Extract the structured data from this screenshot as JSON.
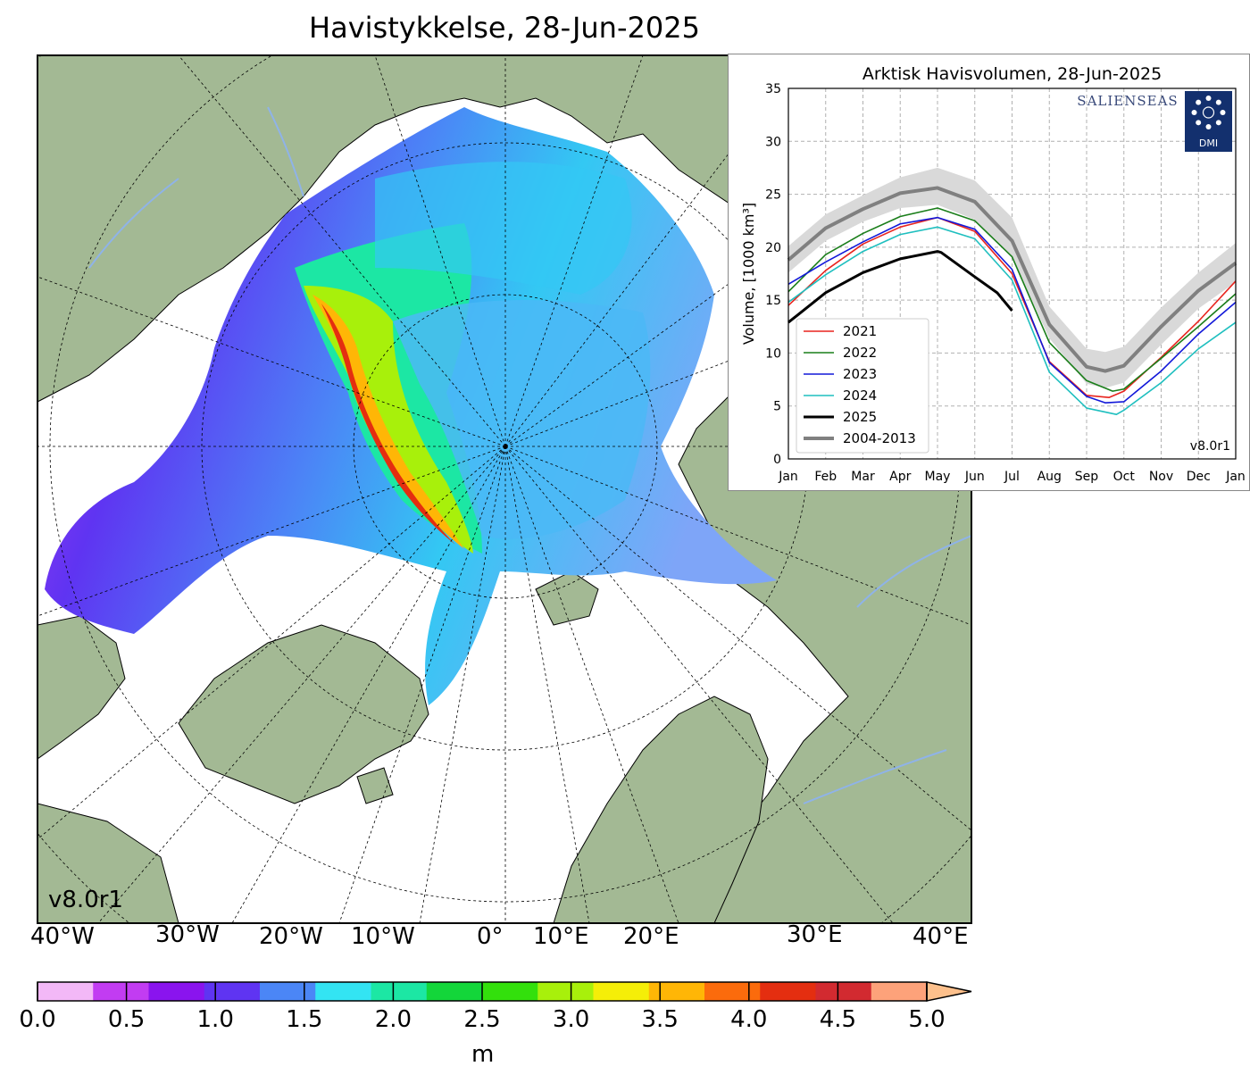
{
  "title": "Havistykkelse, 28-Jun-2025",
  "map": {
    "version": "v8.0r1",
    "lon_labels": [
      "40°W",
      "30°W",
      "20°W",
      "10°W",
      "0°",
      "10°E",
      "20°E",
      "30°E",
      "40°E"
    ],
    "colors": {
      "land": "#a3b994",
      "ocean": "#ffffff",
      "river": "#8fb3e8",
      "coast": "#000000"
    }
  },
  "colorbar": {
    "ticks": [
      "0.0",
      "0.5",
      "1.0",
      "1.5",
      "2.0",
      "2.5",
      "3.0",
      "3.5",
      "4.0",
      "4.5",
      "5.0"
    ],
    "unit": "m",
    "colors": [
      "#f3b8f7",
      "#c23cf2",
      "#8a14ee",
      "#5f34f2",
      "#4b86f6",
      "#33e4f3",
      "#1ce7a4",
      "#13d63a",
      "#33e00c",
      "#a8f00b",
      "#f5ee08",
      "#ffb606",
      "#fb6b0c",
      "#e42e10",
      "#d22a30",
      "#fda27a",
      "#fdc08c"
    ]
  },
  "chart_data": {
    "type": "line",
    "title": "Arktisk Havisvolumen, 28-Jun-2025",
    "ylabel": "Volume, [1000 km³]",
    "xlabel": "",
    "ylim": [
      0,
      35
    ],
    "yticks": [
      0,
      5,
      10,
      15,
      20,
      25,
      30,
      35
    ],
    "x_ticks": [
      "Jan",
      "Feb",
      "Mar",
      "Apr",
      "May",
      "Jun",
      "Jul",
      "Aug",
      "Sep",
      "Oct",
      "Nov",
      "Dec",
      "Jan"
    ],
    "grid": true,
    "legend_position": "lower-left",
    "version": "v8.0r1",
    "logos": [
      "SALIENSEAS",
      "DMI"
    ],
    "series": [
      {
        "name": "2021",
        "color": "#e8241e",
        "x": [
          0,
          1,
          2,
          3,
          4,
          5,
          6,
          7,
          8,
          8.6,
          9,
          10,
          11,
          12
        ],
        "values": [
          14.5,
          17.8,
          20.3,
          21.9,
          22.8,
          21.5,
          17.5,
          9.2,
          6.0,
          5.8,
          6.4,
          9.6,
          13.0,
          16.8
        ]
      },
      {
        "name": "2022",
        "color": "#1a7e1a",
        "x": [
          0,
          1,
          2,
          3,
          4,
          5,
          6,
          7,
          8,
          8.7,
          9,
          10,
          11,
          12
        ],
        "values": [
          15.8,
          19.3,
          21.3,
          22.9,
          23.7,
          22.5,
          19.1,
          11.0,
          7.4,
          6.4,
          6.6,
          9.5,
          12.5,
          15.6
        ]
      },
      {
        "name": "2023",
        "color": "#1218d9",
        "x": [
          0,
          1,
          2,
          3,
          4,
          5,
          6,
          7,
          8,
          8.5,
          9,
          10,
          11,
          12
        ],
        "values": [
          16.5,
          18.6,
          20.5,
          22.2,
          22.8,
          21.7,
          17.9,
          9.1,
          5.9,
          5.3,
          5.4,
          8.3,
          11.8,
          14.8
        ]
      },
      {
        "name": "2024",
        "color": "#1fbfbf",
        "x": [
          0,
          1,
          2,
          3,
          4,
          5,
          6,
          7,
          8,
          8.8,
          9,
          10,
          11,
          12
        ],
        "values": [
          14.8,
          17.4,
          19.6,
          21.2,
          21.9,
          20.8,
          16.9,
          8.2,
          4.8,
          4.2,
          4.6,
          7.2,
          10.4,
          12.9
        ]
      },
      {
        "name": "2025",
        "color": "#000000",
        "x": [
          0,
          1,
          2,
          3,
          4,
          4.1,
          5,
          5.6,
          6
        ],
        "values": [
          12.9,
          15.7,
          17.6,
          18.9,
          19.6,
          19.5,
          17.2,
          15.7,
          14.0
        ]
      },
      {
        "name": "2004-2013",
        "color": "#808080",
        "x": [
          0,
          1,
          2,
          3,
          4,
          5,
          6,
          7,
          8,
          8.5,
          9,
          10,
          11,
          12
        ],
        "values": [
          18.8,
          21.8,
          23.6,
          25.1,
          25.6,
          24.3,
          20.6,
          12.7,
          8.7,
          8.3,
          8.8,
          12.5,
          15.9,
          18.5
        ],
        "band": [
          [
            17.6,
            20.1
          ],
          [
            20.6,
            23.1
          ],
          [
            22.4,
            24.9
          ],
          [
            23.7,
            26.6
          ],
          [
            24.0,
            27.5
          ],
          [
            22.6,
            26.3
          ],
          [
            19.0,
            22.8
          ],
          [
            11.4,
            14.4
          ],
          [
            7.1,
            10.4
          ],
          [
            6.7,
            10.1
          ],
          [
            7.2,
            10.6
          ],
          [
            10.8,
            14.3
          ],
          [
            14.2,
            17.6
          ],
          [
            16.7,
            20.4
          ]
        ]
      }
    ]
  }
}
